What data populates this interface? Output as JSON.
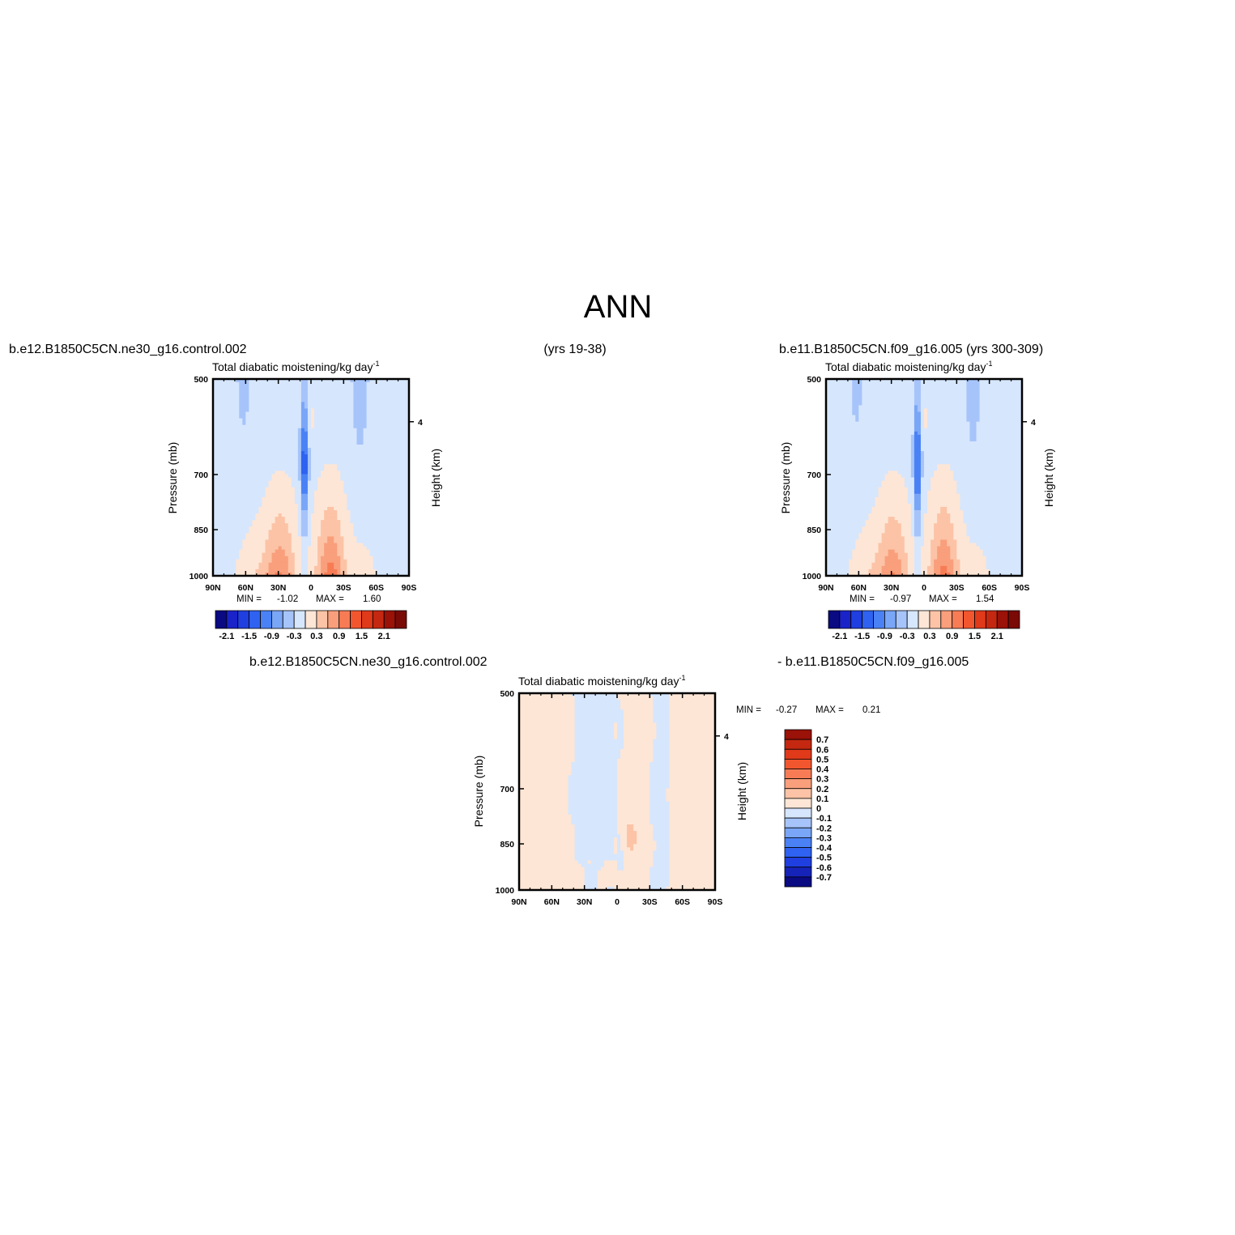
{
  "figure": {
    "main_title": "ANN"
  },
  "colors": {
    "scale17": [
      "#0a0a82",
      "#1a23c8",
      "#1f3fe0",
      "#2f62f0",
      "#4a82f5",
      "#7aa6f7",
      "#a6c4fa",
      "#d6e6fd",
      "#fde6d6",
      "#fcc3a6",
      "#f99f7c",
      "#f77c55",
      "#f2562e",
      "#e03a1a",
      "#c42810",
      "#9a1208",
      "#7a0a06"
    ],
    "scale14": [
      "#0a0a82",
      "#1523b8",
      "#1f3fe0",
      "#2f62f0",
      "#4a82f5",
      "#7aa6f7",
      "#a6c4fa",
      "#d6e6fd",
      "#fde6d6",
      "#fcc3a6",
      "#f99f7c",
      "#f77c55",
      "#f2562e",
      "#e03a1a",
      "#c42810",
      "#9a1208"
    ]
  },
  "chart_data": [
    {
      "type": "heatmap",
      "case": "b.e12.B1850C5CN.ne30_g16.control.002",
      "years": "(yrs 19-38)",
      "title": "Total diabatic moistening/kg day",
      "title_superscript": "-1",
      "ylabel": "Pressure (mb)",
      "ylabel_right": "Height (km)",
      "x_ticks": [
        "90N",
        "60N",
        "30N",
        "0",
        "30S",
        "60S",
        "90S"
      ],
      "y_ticks": [
        "500",
        "700",
        "850",
        "1000"
      ],
      "y_right_ticks": [
        "4"
      ],
      "ylim": [
        1000,
        500
      ],
      "stats": {
        "min_label": "MIN =",
        "min": "-1.02",
        "max_label": "MAX =",
        "max": "1.60"
      },
      "colorbar": {
        "orientation": "horizontal",
        "levels": [
          -2.1,
          -1.8,
          -1.5,
          -1.2,
          -0.9,
          -0.6,
          -0.3,
          0,
          0.3,
          0.6,
          0.9,
          1.2,
          1.5,
          1.8,
          2.1
        ],
        "tick_labels": [
          "-2.1",
          "-1.5",
          "-0.9",
          "-0.3",
          "0.3",
          "0.9",
          "1.5",
          "2.1"
        ]
      }
    },
    {
      "type": "heatmap",
      "case": "b.e11.B1850C5CN.f09_g16.005 (yrs 300-309)",
      "title": "Total diabatic moistening/kg day",
      "title_superscript": "-1",
      "ylabel": "Pressure (mb)",
      "ylabel_right": "Height (km)",
      "x_ticks": [
        "90N",
        "60N",
        "30N",
        "0",
        "30S",
        "60S",
        "90S"
      ],
      "y_ticks": [
        "500",
        "700",
        "850",
        "1000"
      ],
      "y_right_ticks": [
        "4"
      ],
      "ylim": [
        1000,
        500
      ],
      "stats": {
        "min_label": "MIN =",
        "min": "-0.97",
        "max_label": "MAX =",
        "max": "1.54"
      },
      "colorbar": {
        "orientation": "horizontal",
        "levels": [
          -2.1,
          -1.8,
          -1.5,
          -1.2,
          -0.9,
          -0.6,
          -0.3,
          0,
          0.3,
          0.6,
          0.9,
          1.2,
          1.5,
          1.8,
          2.1
        ],
        "tick_labels": [
          "-2.1",
          "-1.5",
          "-0.9",
          "-0.3",
          "0.3",
          "0.9",
          "1.5",
          "2.1"
        ]
      }
    },
    {
      "type": "heatmap",
      "case_left": "b.e12.B1850C5CN.ne30_g16.control.002",
      "case_right": "- b.e11.B1850C5CN.f09_g16.005",
      "title": "Total diabatic moistening/kg day",
      "title_superscript": "-1",
      "ylabel": "Pressure (mb)",
      "ylabel_right": "Height (km)",
      "x_ticks": [
        "90N",
        "60N",
        "30N",
        "0",
        "30S",
        "60S",
        "90S"
      ],
      "y_ticks": [
        "500",
        "700",
        "850",
        "1000"
      ],
      "y_right_ticks": [
        "4"
      ],
      "ylim": [
        1000,
        500
      ],
      "stats": {
        "min_label": "MIN =",
        "min": "-0.27",
        "max_label": "MAX =",
        "max": "0.21"
      },
      "colorbar": {
        "orientation": "vertical",
        "tick_labels": [
          "0.7",
          "0.6",
          "0.5",
          "0.4",
          "0.3",
          "0.2",
          "0.1",
          "0",
          "-0.1",
          "-0.2",
          "-0.3",
          "-0.4",
          "-0.5",
          "-0.6",
          "-0.7"
        ]
      }
    }
  ]
}
